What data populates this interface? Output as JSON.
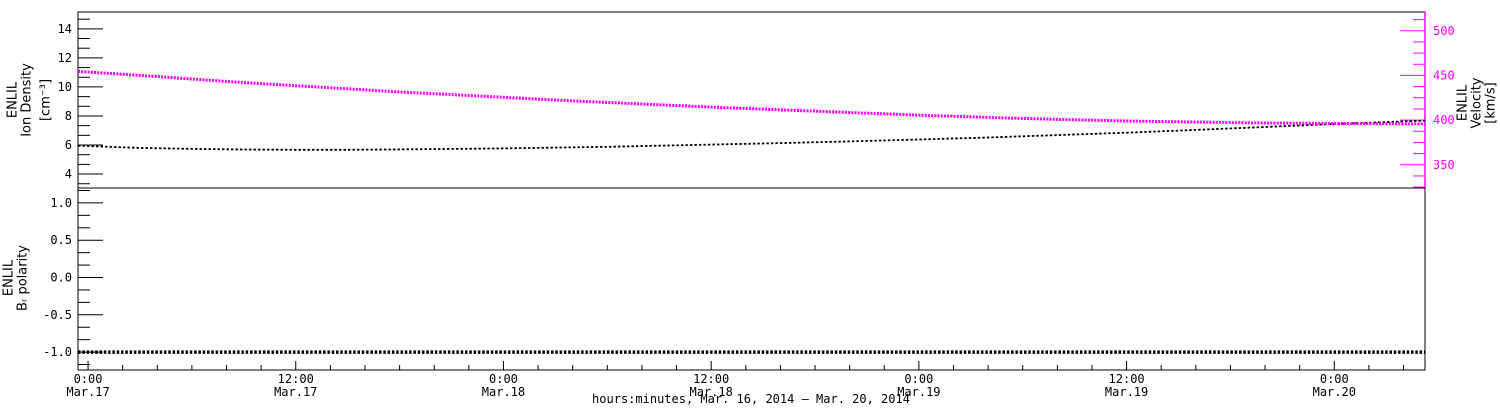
{
  "colors": {
    "background": "#ffffff",
    "black": "#000000",
    "magenta": "#ff00ff"
  },
  "x_axis": {
    "title": "hours:minutes, Mar. 16, 2014 – Mar. 20, 2014",
    "range_hours": [
      -0.58,
      77.24
    ],
    "minor_step_hours": 2,
    "major_ticks": [
      {
        "hours": 0,
        "time": "0:00",
        "date": "Mar.17"
      },
      {
        "hours": 12,
        "time": "12:00",
        "date": "Mar.17"
      },
      {
        "hours": 24,
        "time": "0:00",
        "date": "Mar.18"
      },
      {
        "hours": 36,
        "time": "12:00",
        "date": "Mar.18"
      },
      {
        "hours": 48,
        "time": "0:00",
        "date": "Mar.19"
      },
      {
        "hours": 60,
        "time": "12:00",
        "date": "Mar.19"
      },
      {
        "hours": 72,
        "time": "0:00",
        "date": "Mar.20"
      }
    ]
  },
  "chart_data": [
    {
      "type": "line",
      "panel": "top",
      "grid": false,
      "left_axis": {
        "label_lines": [
          "ENLIL",
          "Ion Density",
          "[cm⁻³]"
        ],
        "range": [
          3.04,
          15.16
        ],
        "major_ticks": [
          4,
          6,
          8,
          10,
          12,
          14
        ],
        "tick_labels": [
          "4",
          "6",
          "8",
          "10",
          "12",
          "14"
        ],
        "minor_step": 0.66667,
        "color": "#000000"
      },
      "right_axis": {
        "label_lines": [
          "ENLIL",
          "Velocity",
          "[km/s]"
        ],
        "range": [
          324,
          521
        ],
        "major_ticks": [
          350,
          400,
          450,
          500
        ],
        "tick_labels": [
          "350",
          "400",
          "450",
          "500"
        ],
        "minor_step": 12.5,
        "color": "#ff00ff"
      },
      "series": [
        {
          "name": "ion-density",
          "legend": "ENLIL Ion Density [cm⁻³]",
          "axis": "left",
          "color": "#000000",
          "x_hours": [
            -0.58,
            3,
            6,
            9,
            12,
            15,
            18,
            21,
            24,
            27,
            30,
            33,
            36,
            40,
            44,
            48,
            52,
            56,
            60,
            64,
            68,
            72,
            75,
            77.24
          ],
          "values": [
            5.95,
            5.8,
            5.73,
            5.69,
            5.67,
            5.67,
            5.7,
            5.73,
            5.77,
            5.82,
            5.88,
            5.95,
            6.03,
            6.13,
            6.25,
            6.38,
            6.52,
            6.68,
            6.85,
            7.04,
            7.24,
            7.45,
            7.58,
            7.68
          ]
        },
        {
          "name": "velocity",
          "legend": "ENLIL Velocity [km/s]",
          "axis": "right",
          "color": "#ff00ff",
          "x_hours": [
            -0.58,
            3,
            6,
            9,
            12,
            15,
            18,
            21,
            24,
            28,
            32,
            36,
            40,
            44,
            48,
            52,
            56,
            60,
            64,
            68,
            72,
            77.24
          ],
          "values": [
            454.5,
            450,
            446,
            442,
            438.5,
            435,
            431.5,
            428.5,
            425.5,
            421.5,
            418,
            414.5,
            411.5,
            408.5,
            405.5,
            403,
            400.8,
            399,
            397.8,
            396.8,
            396.2,
            395.8
          ]
        }
      ]
    },
    {
      "type": "line",
      "panel": "bottom",
      "grid": false,
      "left_axis": {
        "label_lines": [
          "ENLIL",
          "Bᵣ polarity"
        ],
        "range": [
          -1.24,
          1.2
        ],
        "major_ticks": [
          -1.0,
          -0.5,
          0.0,
          0.5,
          1.0
        ],
        "tick_labels": [
          "-1.0",
          "-0.5",
          "0.0",
          "0.5",
          "1.0"
        ],
        "minor_step": 0.16667,
        "color": "#000000"
      },
      "series": [
        {
          "name": "br-polarity",
          "legend": "ENLIL Bᵣ polarity",
          "axis": "left",
          "color": "#000000",
          "x_hours": [
            -0.58,
            77.24
          ],
          "values": [
            -1,
            -1
          ]
        }
      ]
    }
  ]
}
